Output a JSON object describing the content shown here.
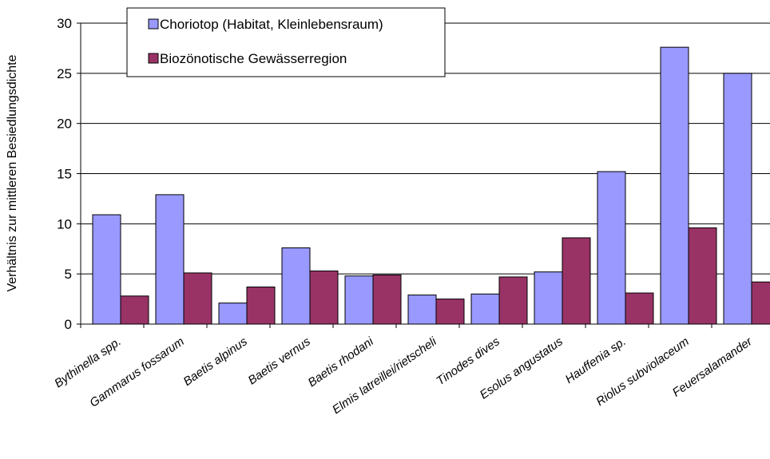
{
  "chart_data": {
    "type": "bar",
    "title": "",
    "xlabel": "",
    "ylabel": "Verhältnis zur mittleren Besiedlungsdichte",
    "ylim": [
      0,
      30
    ],
    "yticks": [
      0,
      5,
      10,
      15,
      20,
      25,
      30
    ],
    "grid": true,
    "legend_position": "top-left",
    "categories": [
      "Bythinella spp.",
      "Gammarus fossarum",
      "Baetis alpinus",
      "Baetis vernus",
      "Baetis rhodani",
      "Elmis latreillei/rietscheli",
      "Tinodes dives",
      "Esolus angustatus",
      "Hauffenia sp.",
      "Riolus subviolaceum",
      "Feuersalamander"
    ],
    "series": [
      {
        "name": "Choriotop (Habitat, Kleinlebensraum)",
        "color": "#9999ff",
        "values": [
          10.9,
          12.9,
          2.1,
          7.6,
          4.8,
          2.9,
          3.0,
          5.2,
          15.2,
          27.6,
          25.0
        ]
      },
      {
        "name": "Biozönotische Gewässerregion",
        "color": "#993366",
        "values": [
          2.8,
          5.1,
          3.7,
          5.3,
          4.9,
          2.5,
          4.7,
          8.6,
          3.1,
          9.6,
          4.2
        ]
      }
    ]
  }
}
